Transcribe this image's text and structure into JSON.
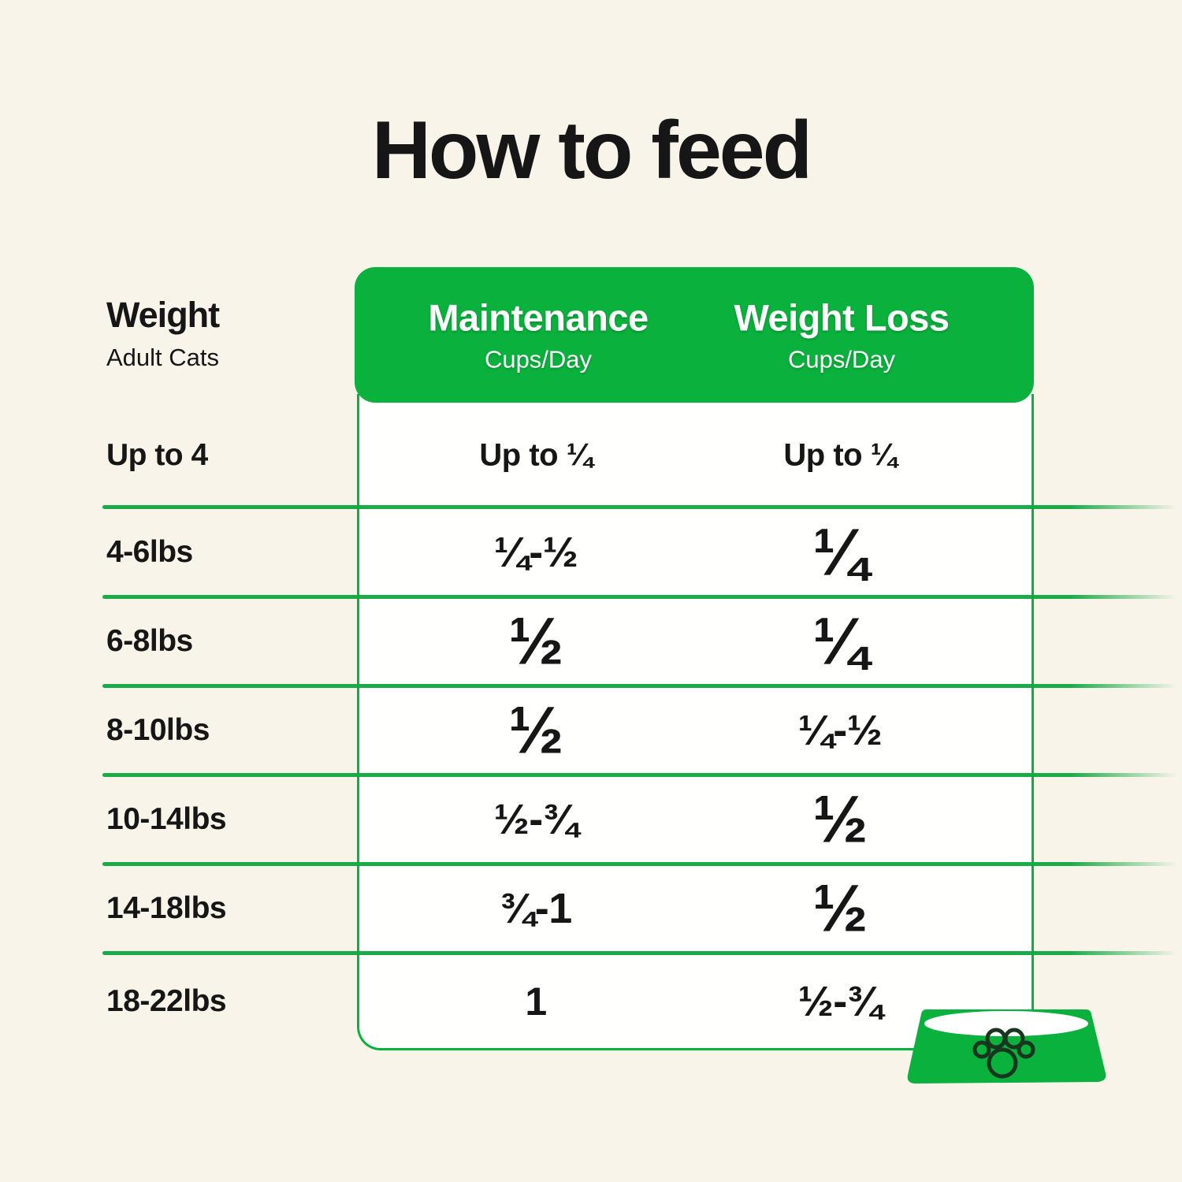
{
  "title": "How to feed",
  "weight_column": {
    "title": "Weight",
    "subtitle": "Adult Cats"
  },
  "header": {
    "maintenance_label": "Maintenance",
    "maintenance_unit": "Cups/Day",
    "weight_loss_label": "Weight Loss",
    "weight_loss_unit": "Cups/Day"
  },
  "icons": {
    "bowl": "pet-bowl-icon",
    "paw": "paw-print-icon"
  },
  "colors": {
    "background": "#f8f4ea",
    "accent_green": "#0bb13d",
    "table_white": "#fffffd",
    "text_black": "#161616",
    "paw_outline": "#17351f"
  },
  "chart_data": {
    "type": "table",
    "title": "How to feed",
    "columns": [
      "Weight (Adult Cats)",
      "Maintenance Cups/Day",
      "Weight Loss Cups/Day"
    ],
    "rows": [
      [
        "Up to 4",
        "Up to ¼",
        "Up to ¼"
      ],
      [
        "4-6lbs",
        "¼-½",
        "¼"
      ],
      [
        "6-8lbs",
        "½",
        "¼"
      ],
      [
        "8-10lbs",
        "½",
        "¼-½"
      ],
      [
        "10-14lbs",
        "½-¾",
        "½"
      ],
      [
        "14-18lbs",
        "¾-1",
        "½"
      ],
      [
        "18-22lbs",
        "1",
        "½-¾"
      ]
    ]
  }
}
